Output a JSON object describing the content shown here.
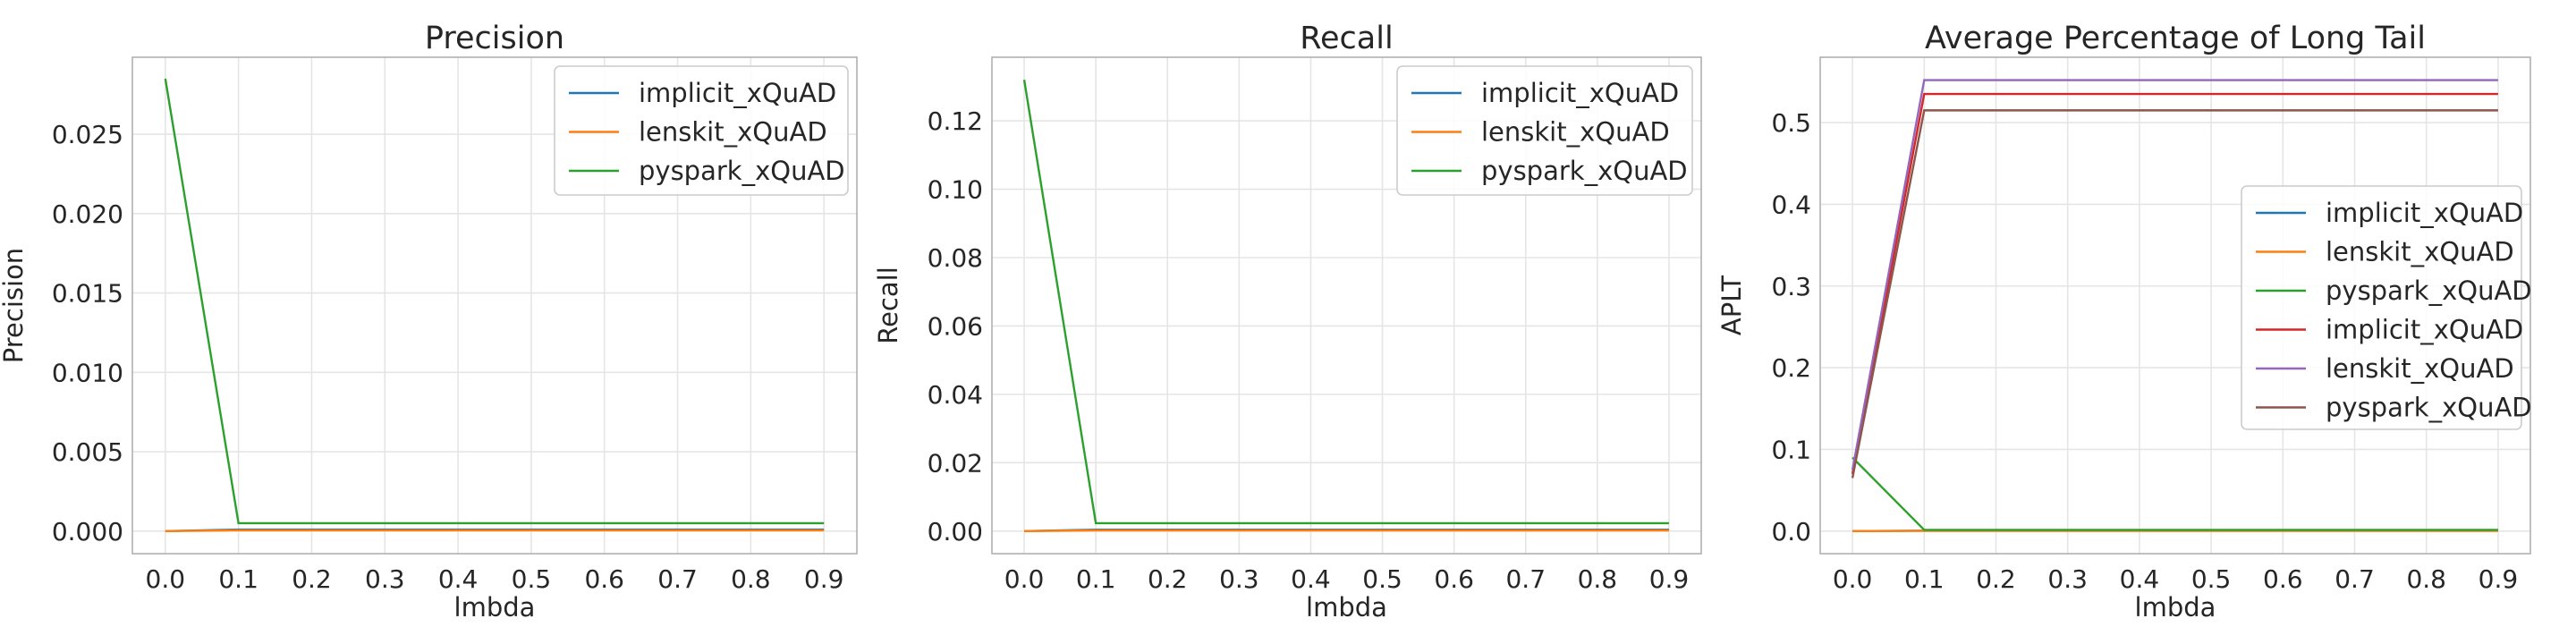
{
  "chart_data": [
    {
      "type": "line",
      "title": "Precision",
      "xlabel": "lmbda",
      "ylabel": "Precision",
      "x": [
        0.0,
        0.1,
        0.2,
        0.3,
        0.4,
        0.5,
        0.6,
        0.7,
        0.8,
        0.9
      ],
      "xticks": [
        "0.0",
        "0.1",
        "0.2",
        "0.3",
        "0.4",
        "0.5",
        "0.6",
        "0.7",
        "0.8",
        "0.9"
      ],
      "xlim": [
        -0.045,
        0.945
      ],
      "ylim": [
        -0.00142,
        0.02985
      ],
      "yticks": [
        "0.000",
        "0.005",
        "0.010",
        "0.015",
        "0.020",
        "0.025"
      ],
      "ytick_values": [
        0,
        0.005,
        0.01,
        0.015,
        0.02,
        0.025
      ],
      "grid": true,
      "legend_position": "upper right",
      "series": [
        {
          "name": "implicit_xQuAD",
          "color": "#1f77b4",
          "values": [
            0,
            0.0001,
            0.0001,
            0.0001,
            0.0001,
            0.0001,
            0.0001,
            0.0001,
            0.0001,
            0.0001
          ]
        },
        {
          "name": "lenskit_xQuAD",
          "color": "#ff7f0e",
          "values": [
            0,
            5e-05,
            5e-05,
            5e-05,
            5e-05,
            5e-05,
            5e-05,
            5e-05,
            5e-05,
            5e-05
          ]
        },
        {
          "name": "pyspark_xQuAD",
          "color": "#2ca02c",
          "values": [
            0.0285,
            0.0005,
            0.0005,
            0.0005,
            0.0005,
            0.0005,
            0.0005,
            0.0005,
            0.0005,
            0.0005
          ]
        }
      ]
    },
    {
      "type": "line",
      "title": "Recall",
      "xlabel": "lmbda",
      "ylabel": "Recall",
      "x": [
        0.0,
        0.1,
        0.2,
        0.3,
        0.4,
        0.5,
        0.6,
        0.7,
        0.8,
        0.9
      ],
      "xticks": [
        "0.0",
        "0.1",
        "0.2",
        "0.3",
        "0.4",
        "0.5",
        "0.6",
        "0.7",
        "0.8",
        "0.9"
      ],
      "xlim": [
        -0.045,
        0.945
      ],
      "ylim": [
        -0.0066,
        0.1386
      ],
      "yticks": [
        "0.00",
        "0.02",
        "0.04",
        "0.06",
        "0.08",
        "0.10",
        "0.12"
      ],
      "ytick_values": [
        0,
        0.02,
        0.04,
        0.06,
        0.08,
        0.1,
        0.12
      ],
      "grid": true,
      "legend_position": "upper right",
      "series": [
        {
          "name": "implicit_xQuAD",
          "color": "#1f77b4",
          "values": [
            0,
            0.0004,
            0.0004,
            0.0004,
            0.0004,
            0.0004,
            0.0004,
            0.0004,
            0.0004,
            0.0004
          ]
        },
        {
          "name": "lenskit_xQuAD",
          "color": "#ff7f0e",
          "values": [
            0,
            0.0002,
            0.0002,
            0.0002,
            0.0002,
            0.0002,
            0.0002,
            0.0002,
            0.0002,
            0.0002
          ]
        },
        {
          "name": "pyspark_xQuAD",
          "color": "#2ca02c",
          "values": [
            0.132,
            0.0023,
            0.0023,
            0.0023,
            0.0023,
            0.0023,
            0.0023,
            0.0023,
            0.0023,
            0.0023
          ]
        }
      ]
    },
    {
      "type": "line",
      "title": "Average Percentage of Long Tail",
      "xlabel": "lmbda",
      "ylabel": "APLT",
      "x": [
        0.0,
        0.1,
        0.2,
        0.3,
        0.4,
        0.5,
        0.6,
        0.7,
        0.8,
        0.9
      ],
      "xticks": [
        "0.0",
        "0.1",
        "0.2",
        "0.3",
        "0.4",
        "0.5",
        "0.6",
        "0.7",
        "0.8",
        "0.9"
      ],
      "xlim": [
        -0.045,
        0.945
      ],
      "ylim": [
        -0.0276,
        0.58
      ],
      "yticks": [
        "0.0",
        "0.1",
        "0.2",
        "0.3",
        "0.4",
        "0.5"
      ],
      "ytick_values": [
        0,
        0.1,
        0.2,
        0.3,
        0.4,
        0.5
      ],
      "grid": true,
      "legend_position": "center right",
      "series": [
        {
          "name": "implicit_xQuAD",
          "color": "#1f77b4",
          "values": [
            0,
            0.0005,
            0.0005,
            0.0005,
            0.0005,
            0.0005,
            0.0005,
            0.0005,
            0.0005,
            0.0005
          ]
        },
        {
          "name": "lenskit_xQuAD",
          "color": "#ff7f0e",
          "values": [
            0,
            0.0003,
            0.0003,
            0.0003,
            0.0003,
            0.0003,
            0.0003,
            0.0003,
            0.0003,
            0.0003
          ]
        },
        {
          "name": "pyspark_xQuAD",
          "color": "#2ca02c",
          "values": [
            0.09,
            0.0015,
            0.0015,
            0.0015,
            0.0015,
            0.0015,
            0.0015,
            0.0015,
            0.0015,
            0.0015
          ]
        },
        {
          "name": "implicit_xQuAD",
          "color": "#d62728",
          "values": [
            0.07,
            0.535,
            0.535,
            0.535,
            0.535,
            0.535,
            0.535,
            0.535,
            0.535,
            0.535
          ]
        },
        {
          "name": "lenskit_xQuAD",
          "color": "#9467bd",
          "values": [
            0.075,
            0.552,
            0.552,
            0.552,
            0.552,
            0.552,
            0.552,
            0.552,
            0.552,
            0.552
          ]
        },
        {
          "name": "pyspark_xQuAD",
          "color": "#8c564b",
          "values": [
            0.065,
            0.515,
            0.515,
            0.515,
            0.515,
            0.515,
            0.515,
            0.515,
            0.515,
            0.515
          ]
        }
      ]
    }
  ]
}
